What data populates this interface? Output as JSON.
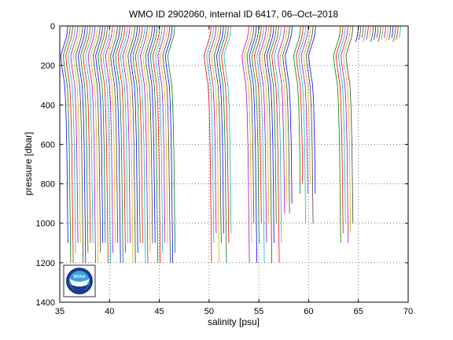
{
  "chart_data": {
    "type": "line",
    "title": "WMO ID 2902060, internal ID 6417, 06–Oct–2018",
    "xlabel": "salinity [psu]",
    "ylabel": "pressure [dbar]",
    "xlim": [
      35,
      70
    ],
    "ylim": [
      0,
      1400
    ],
    "y_reversed": true,
    "xticks": [
      35,
      40,
      45,
      50,
      55,
      60,
      65,
      70
    ],
    "yticks": [
      0,
      200,
      400,
      600,
      800,
      1000,
      1200,
      1400
    ],
    "grid": true,
    "series_colors": [
      "#0000ff",
      "#008000",
      "#ff0000",
      "#00bfbf",
      "#bf00bf",
      "#bfbf00",
      "#404040"
    ],
    "profile_offset_psu": 0.25,
    "profile_shape": {
      "pressure": [
        0,
        30,
        60,
        100,
        150,
        200,
        300,
        400,
        600,
        800,
        1000,
        1200
      ],
      "delta_salinity": [
        0.6,
        0.55,
        0.45,
        0.2,
        -0.1,
        0,
        0.3,
        0.4,
        0.5,
        0.55,
        0.6,
        0.65
      ]
    },
    "profile_groups": [
      {
        "start_salinity": 35.2,
        "count": 44,
        "max_pressure": [
          1100,
          1200,
          1200,
          1150,
          1100
        ]
      },
      {
        "start_salinity": 49.6,
        "count": 9,
        "max_pressure": [
          1200,
          1100,
          1050
        ]
      },
      {
        "start_salinity": 53.4,
        "count": 14,
        "max_pressure": [
          1200,
          1100,
          1000
        ]
      },
      {
        "start_salinity": 57.0,
        "count": 4,
        "max_pressure": [
          950,
          900
        ]
      },
      {
        "start_salinity": 58.6,
        "count": 7,
        "max_pressure": [
          850,
          800,
          1000
        ]
      },
      {
        "start_salinity": 62.6,
        "count": 6,
        "max_pressure": [
          1100,
          1050,
          1000
        ]
      },
      {
        "start_salinity": 64.4,
        "count": 18,
        "max_pressure": [
          80,
          70,
          60
        ]
      }
    ]
  },
  "logo": {
    "text": "NOAA",
    "colors": {
      "navy": "#1b3a8c",
      "sky": "#3aa0e0",
      "bird": "#ffffff"
    }
  }
}
